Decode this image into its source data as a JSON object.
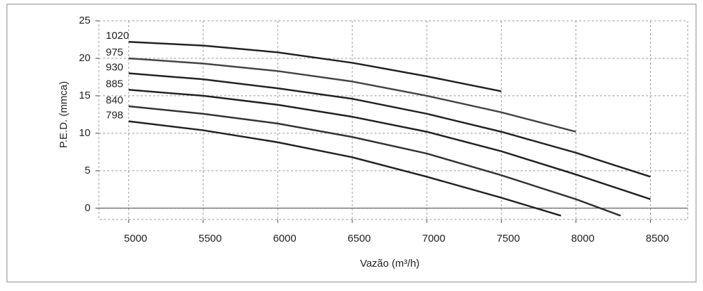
{
  "chart_data": {
    "type": "line",
    "x_label": "Vazão (m³/h)",
    "y_label": "P.E.D. (mmca)",
    "xlim": [
      4800,
      8750
    ],
    "ylim": [
      -1.5,
      25
    ],
    "xticks": [
      5000,
      5500,
      6000,
      6500,
      7000,
      7500,
      8000,
      8500
    ],
    "yticks": [
      0,
      5,
      10,
      15,
      20,
      25
    ],
    "grid": true,
    "series": [
      {
        "name": "1020",
        "color": "#222222",
        "x": [
          5000,
          5500,
          6000,
          6500,
          7000,
          7500
        ],
        "values": [
          22.2,
          21.7,
          20.8,
          19.4,
          17.6,
          15.6
        ]
      },
      {
        "name": "975",
        "color": "#444444",
        "x": [
          5000,
          5500,
          6000,
          6500,
          7000,
          7500,
          8000
        ],
        "values": [
          20,
          19.3,
          18.3,
          16.9,
          15,
          12.8,
          10.2
        ]
      },
      {
        "name": "930",
        "color": "#222222",
        "x": [
          5000,
          5500,
          6000,
          6500,
          7000,
          7500,
          8000,
          8500
        ],
        "values": [
          18,
          17.2,
          16,
          14.6,
          12.6,
          10.2,
          7.4,
          4.2
        ]
      },
      {
        "name": "885",
        "color": "#222222",
        "x": [
          5000,
          5500,
          6000,
          6500,
          7000,
          7500,
          8000,
          8500
        ],
        "values": [
          15.8,
          15,
          13.8,
          12.2,
          10.2,
          7.6,
          4.5,
          1.2
        ]
      },
      {
        "name": "840",
        "color": "#333333",
        "x": [
          5000,
          5500,
          6000,
          6500,
          7000,
          7500,
          8000,
          8300
        ],
        "values": [
          13.6,
          12.6,
          11.3,
          9.5,
          7.3,
          4.4,
          1.2,
          -1
        ]
      },
      {
        "name": "798",
        "color": "#222222",
        "x": [
          5000,
          5500,
          6000,
          6500,
          7000,
          7500,
          7900
        ],
        "values": [
          11.6,
          10.4,
          8.8,
          6.8,
          4.2,
          1.4,
          -1
        ]
      }
    ]
  }
}
